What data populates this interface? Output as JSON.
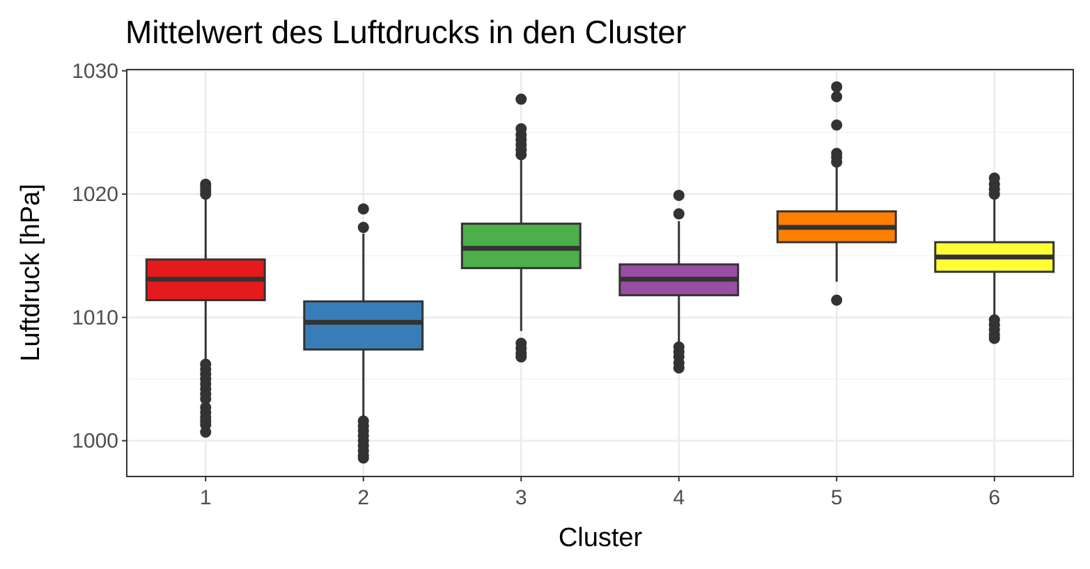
{
  "chart_data": {
    "type": "boxplot",
    "title": "Mittelwert des Luftdrucks in den Cluster",
    "xlabel": "Cluster",
    "ylabel": "Luftdruck [hPa]",
    "categories": [
      "1",
      "2",
      "3",
      "4",
      "5",
      "6"
    ],
    "yticks": [
      "1000",
      "1010",
      "1020",
      "1030"
    ],
    "ylim": [
      997.1,
      1030.1
    ],
    "grid": true,
    "boxes": [
      {
        "cluster": "1",
        "color": "#E41A1C",
        "lower_whisker": 1006.1,
        "q1": 1011.4,
        "median": 1013.1,
        "q3": 1014.7,
        "upper_whisker": 1019.8,
        "outliers": [
          1006.2,
          1005.8,
          1005.4,
          1005.0,
          1004.6,
          1004.2,
          1003.8,
          1003.4,
          1002.7,
          1002.3,
          1001.9,
          1001.6,
          1001.3,
          1000.7,
          1020.0,
          1020.3,
          1020.6,
          1020.8
        ]
      },
      {
        "cluster": "2",
        "color": "#377EB8",
        "lower_whisker": 1001.6,
        "q1": 1007.4,
        "median": 1009.6,
        "q3": 1011.3,
        "upper_whisker": 1016.8,
        "outliers": [
          1001.6,
          1001.2,
          1000.8,
          1000.4,
          1000.0,
          999.6,
          999.2,
          998.8,
          998.6,
          1017.3,
          1018.8
        ]
      },
      {
        "cluster": "3",
        "color": "#4DAF4A",
        "lower_whisker": 1008.9,
        "q1": 1014.0,
        "median": 1015.6,
        "q3": 1017.6,
        "upper_whisker": 1022.9,
        "outliers": [
          1007.9,
          1007.5,
          1007.1,
          1006.8,
          1023.2,
          1023.6,
          1024.0,
          1024.4,
          1024.8,
          1025.3,
          1027.7
        ]
      },
      {
        "cluster": "4",
        "color": "#984EA3",
        "lower_whisker": 1007.9,
        "q1": 1011.8,
        "median": 1013.1,
        "q3": 1014.3,
        "upper_whisker": 1017.8,
        "outliers": [
          1007.6,
          1007.2,
          1006.8,
          1006.3,
          1005.9,
          1018.4,
          1019.9
        ]
      },
      {
        "cluster": "5",
        "color": "#FF7F00",
        "lower_whisker": 1012.9,
        "q1": 1016.1,
        "median": 1017.3,
        "q3": 1018.6,
        "upper_whisker": 1022.3,
        "outliers": [
          1011.4,
          1022.6,
          1023.0,
          1023.3,
          1025.6,
          1027.9,
          1028.7
        ]
      },
      {
        "cluster": "6",
        "color": "#FFFF33",
        "lower_whisker": 1010.1,
        "q1": 1013.7,
        "median": 1014.9,
        "q3": 1016.1,
        "upper_whisker": 1019.8,
        "outliers": [
          1009.8,
          1009.4,
          1009.0,
          1008.6,
          1008.3,
          1020.0,
          1020.4,
          1020.8,
          1021.3
        ]
      }
    ]
  }
}
